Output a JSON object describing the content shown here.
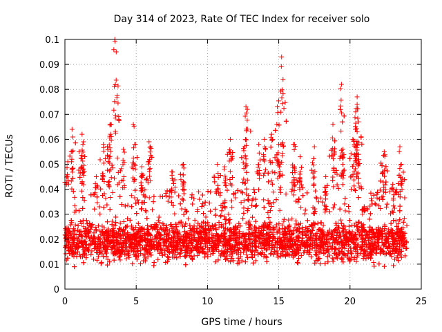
{
  "chart_data": {
    "type": "scatter",
    "title": "Day 314 of 2023, Rate Of TEC Index for receiver solo",
    "xlabel": "GPS time / hours",
    "ylabel": "ROTI / TECUs",
    "xlim": [
      0,
      25
    ],
    "ylim": [
      0,
      0.1
    ],
    "x_ticks": [
      0,
      5,
      10,
      15,
      20,
      25
    ],
    "y_ticks": [
      0,
      0.01,
      0.02,
      0.03,
      0.04,
      0.05,
      0.06,
      0.07,
      0.08,
      0.09,
      0.1
    ],
    "x_tick_labels": [
      "0",
      "5",
      "10",
      "15",
      "20",
      "25"
    ],
    "y_tick_labels": [
      "0",
      "0.01",
      "0.02",
      "0.03",
      "0.04",
      "0.05",
      "0.06",
      "0.07",
      "0.08",
      "0.09",
      "0.1"
    ],
    "grid": true,
    "marker": "+",
    "marker_color": "#ff0000",
    "data_x_range": [
      0,
      24
    ],
    "base_band": [
      0.006,
      0.03
    ],
    "spikes": [
      {
        "x": 0.2,
        "y": 0.051
      },
      {
        "x": 0.5,
        "y": 0.064
      },
      {
        "x": 0.5,
        "y": 0.055
      },
      {
        "x": 1.2,
        "y": 0.062
      },
      {
        "x": 1.3,
        "y": 0.059
      },
      {
        "x": 1.2,
        "y": 0.049
      },
      {
        "x": 2.2,
        "y": 0.045
      },
      {
        "x": 2.7,
        "y": 0.058
      },
      {
        "x": 3.2,
        "y": 0.066
      },
      {
        "x": 3.2,
        "y": 0.062
      },
      {
        "x": 3.1,
        "y": 0.053
      },
      {
        "x": 3.5,
        "y": 0.1
      },
      {
        "x": 3.6,
        "y": 0.095
      },
      {
        "x": 4.1,
        "y": 0.056
      },
      {
        "x": 4.8,
        "y": 0.066
      },
      {
        "x": 4.9,
        "y": 0.058
      },
      {
        "x": 5.4,
        "y": 0.049
      },
      {
        "x": 5.9,
        "y": 0.059
      },
      {
        "x": 6.0,
        "y": 0.057
      },
      {
        "x": 7.5,
        "y": 0.047
      },
      {
        "x": 8.3,
        "y": 0.05
      },
      {
        "x": 8.3,
        "y": 0.043
      },
      {
        "x": 10.7,
        "y": 0.05
      },
      {
        "x": 11.2,
        "y": 0.049
      },
      {
        "x": 11.6,
        "y": 0.06
      },
      {
        "x": 12.7,
        "y": 0.073
      },
      {
        "x": 12.8,
        "y": 0.072
      },
      {
        "x": 12.6,
        "y": 0.057
      },
      {
        "x": 13.6,
        "y": 0.058
      },
      {
        "x": 14.0,
        "y": 0.06
      },
      {
        "x": 14.5,
        "y": 0.062
      },
      {
        "x": 14.9,
        "y": 0.073
      },
      {
        "x": 15.0,
        "y": 0.058
      },
      {
        "x": 15.2,
        "y": 0.093
      },
      {
        "x": 15.3,
        "y": 0.084
      },
      {
        "x": 15.1,
        "y": 0.05
      },
      {
        "x": 16.1,
        "y": 0.058
      },
      {
        "x": 16.1,
        "y": 0.049
      },
      {
        "x": 16.5,
        "y": 0.053
      },
      {
        "x": 17.5,
        "y": 0.057
      },
      {
        "x": 18.3,
        "y": 0.045
      },
      {
        "x": 18.8,
        "y": 0.066
      },
      {
        "x": 18.9,
        "y": 0.055
      },
      {
        "x": 19.4,
        "y": 0.082
      },
      {
        "x": 19.5,
        "y": 0.056
      },
      {
        "x": 19.5,
        "y": 0.05
      },
      {
        "x": 20.2,
        "y": 0.06
      },
      {
        "x": 20.3,
        "y": 0.058
      },
      {
        "x": 20.5,
        "y": 0.077
      },
      {
        "x": 20.5,
        "y": 0.074
      },
      {
        "x": 20.4,
        "y": 0.071
      },
      {
        "x": 20.6,
        "y": 0.067
      },
      {
        "x": 20.5,
        "y": 0.063
      },
      {
        "x": 21.0,
        "y": 0.033
      },
      {
        "x": 22.4,
        "y": 0.055
      },
      {
        "x": 22.3,
        "y": 0.047
      },
      {
        "x": 23.0,
        "y": 0.042
      },
      {
        "x": 23.5,
        "y": 0.057
      },
      {
        "x": 23.6,
        "y": 0.05
      }
    ]
  }
}
